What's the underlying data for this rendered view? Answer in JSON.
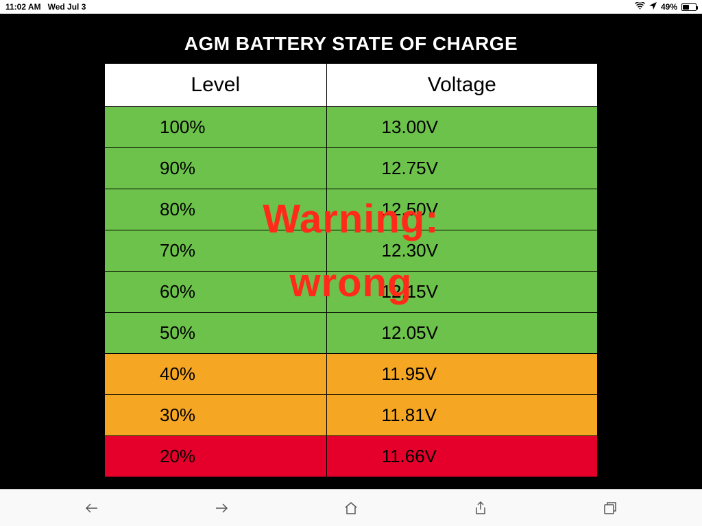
{
  "status": {
    "time": "11:02 AM",
    "date": "Wed Jul 3",
    "battery_percent": "49%",
    "battery_fill_pct": 49
  },
  "chart": {
    "title": "AGM BATTERY STATE OF CHARGE",
    "columns": [
      "Level",
      "Voltage"
    ],
    "rows": [
      {
        "level": "100%",
        "voltage": "13.00V",
        "color": "#6cc24a"
      },
      {
        "level": "90%",
        "voltage": "12.75V",
        "color": "#6cc24a"
      },
      {
        "level": "80%",
        "voltage": "12.50V",
        "color": "#6cc24a"
      },
      {
        "level": "70%",
        "voltage": "12.30V",
        "color": "#6cc24a"
      },
      {
        "level": "60%",
        "voltage": "12.15V",
        "color": "#6cc24a"
      },
      {
        "level": "50%",
        "voltage": "12.05V",
        "color": "#6cc24a"
      },
      {
        "level": "40%",
        "voltage": "11.95V",
        "color": "#f5a623"
      },
      {
        "level": "30%",
        "voltage": "11.81V",
        "color": "#f5a623"
      },
      {
        "level": "20%",
        "voltage": "11.66V",
        "color": "#e4002b"
      }
    ],
    "header_bg": "#ffffff",
    "title_bg": "#000000",
    "border_color": "#000000",
    "overlay": {
      "line1": "Warning:",
      "line2": "wrong",
      "color": "#ff2a1a"
    }
  },
  "toolbar": {
    "back": "back",
    "forward": "forward",
    "home": "home",
    "share": "share",
    "tabs": "tabs"
  }
}
